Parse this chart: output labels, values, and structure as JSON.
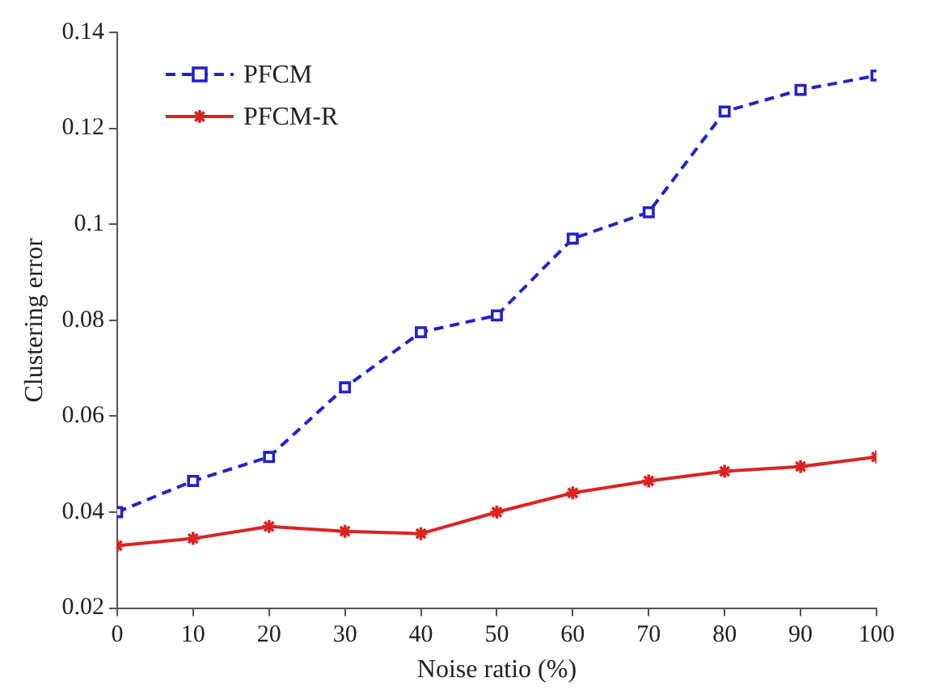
{
  "chart_data": {
    "type": "line",
    "xlabel": "Noise ratio (%)",
    "ylabel": "Clustering error",
    "x": [
      0,
      10,
      20,
      30,
      40,
      50,
      60,
      70,
      80,
      90,
      100
    ],
    "series": [
      {
        "name": "PFCM",
        "color": "#2222cc",
        "marker": "square",
        "line_style": "dashed",
        "values": [
          0.04,
          0.0465,
          0.0515,
          0.066,
          0.0775,
          0.081,
          0.097,
          0.1025,
          0.1235,
          0.128,
          0.131
        ]
      },
      {
        "name": "PFCM-R",
        "color": "#dd2222",
        "marker": "cross",
        "line_style": "solid",
        "values": [
          0.033,
          0.0345,
          0.037,
          0.036,
          0.0355,
          0.04,
          0.044,
          0.0465,
          0.0485,
          0.0495,
          0.0515
        ]
      }
    ],
    "xlim": [
      0,
      100
    ],
    "xticks": [
      0,
      10,
      20,
      30,
      40,
      50,
      60,
      70,
      80,
      90,
      100
    ],
    "ylim": [
      0.02,
      0.14
    ],
    "yticks": [
      0.02,
      0.04,
      0.06,
      0.08,
      0.1,
      0.12,
      0.14
    ],
    "grid": false,
    "legend": "top left"
  }
}
